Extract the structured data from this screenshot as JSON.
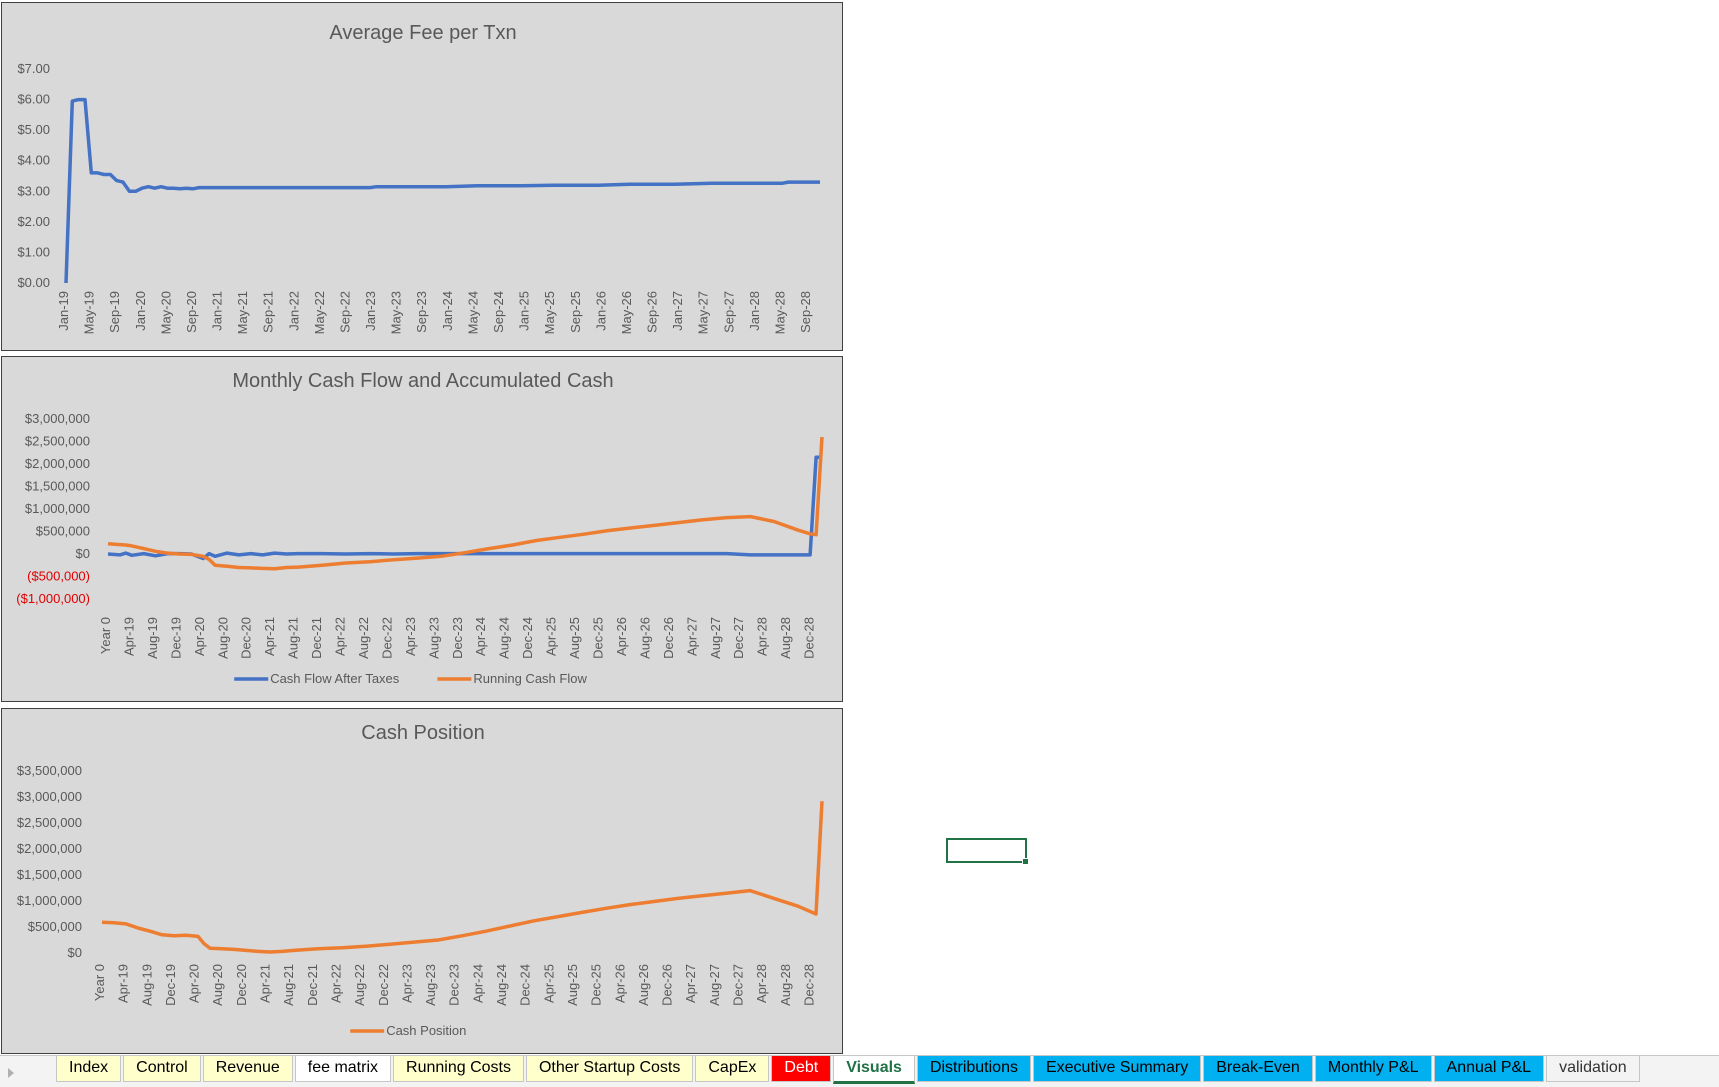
{
  "charts": [
    {
      "id": "chart1",
      "title": "Average Fee per Txn",
      "y_ticks": [
        "$0.00",
        "$1.00",
        "$2.00",
        "$3.00",
        "$4.00",
        "$5.00",
        "$6.00",
        "$7.00"
      ],
      "x_ticks": [
        "Jan-19",
        "May-19",
        "Sep-19",
        "Jan-20",
        "May-20",
        "Sep-20",
        "Jan-21",
        "May-21",
        "Sep-21",
        "Jan-22",
        "May-22",
        "Sep-22",
        "Jan-23",
        "May-23",
        "Sep-23",
        "Jan-24",
        "May-24",
        "Sep-24",
        "Jan-25",
        "May-25",
        "Sep-25",
        "Jan-26",
        "May-26",
        "Sep-26",
        "Jan-27",
        "May-27",
        "Sep-27",
        "Jan-28",
        "May-28",
        "Sep-28"
      ],
      "legend": []
    },
    {
      "id": "chart2",
      "title": "Monthly Cash Flow and Accumulated Cash",
      "y_ticks": [
        "($1,000,000)",
        "($500,000)",
        "$0",
        "$500,000",
        "$1,000,000",
        "$1,500,000",
        "$2,000,000",
        "$2,500,000",
        "$3,000,000"
      ],
      "x_ticks": [
        "Year 0",
        "Apr-19",
        "Aug-19",
        "Dec-19",
        "Apr-20",
        "Aug-20",
        "Dec-20",
        "Apr-21",
        "Aug-21",
        "Dec-21",
        "Apr-22",
        "Aug-22",
        "Dec-22",
        "Apr-23",
        "Aug-23",
        "Dec-23",
        "Apr-24",
        "Aug-24",
        "Dec-24",
        "Apr-25",
        "Aug-25",
        "Dec-25",
        "Apr-26",
        "Aug-26",
        "Dec-26",
        "Apr-27",
        "Aug-27",
        "Dec-27",
        "Apr-28",
        "Aug-28",
        "Dec-28"
      ],
      "legend": [
        "Cash Flow After Taxes",
        "Running Cash Flow"
      ]
    },
    {
      "id": "chart3",
      "title": "Cash Position",
      "y_ticks": [
        "$0",
        "$500,000",
        "$1,000,000",
        "$1,500,000",
        "$2,000,000",
        "$2,500,000",
        "$3,000,000",
        "$3,500,000"
      ],
      "x_ticks": [
        "Year 0",
        "Apr-19",
        "Aug-19",
        "Dec-19",
        "Apr-20",
        "Aug-20",
        "Dec-20",
        "Apr-21",
        "Aug-21",
        "Dec-21",
        "Apr-22",
        "Aug-22",
        "Dec-22",
        "Apr-23",
        "Aug-23",
        "Dec-23",
        "Apr-24",
        "Aug-24",
        "Dec-24",
        "Apr-25",
        "Aug-25",
        "Dec-25",
        "Apr-26",
        "Aug-26",
        "Dec-26",
        "Apr-27",
        "Aug-27",
        "Dec-27",
        "Apr-28",
        "Aug-28",
        "Dec-28"
      ],
      "legend": [
        "Cash Position"
      ]
    }
  ],
  "chart_data": [
    {
      "type": "line",
      "title": "Average Fee per Txn",
      "xlabel": "",
      "ylabel": "",
      "ylim": [
        0,
        7
      ],
      "x": [
        "Jan-19",
        "Feb-19",
        "Mar-19",
        "Apr-19",
        "May-19",
        "Jun-19",
        "Jul-19",
        "Aug-19",
        "Sep-19",
        "Oct-19",
        "Nov-19",
        "Dec-19",
        "Jan-20",
        "Feb-20",
        "Mar-20",
        "Apr-20",
        "May-20",
        "Jun-20",
        "Jul-20",
        "Aug-20",
        "Sep-20",
        "Oct-20",
        "Nov-20",
        "Dec-20",
        "Jan-21",
        "Jun-21",
        "Jan-22",
        "Jan-23",
        "Feb-23",
        "Jan-24",
        "Jun-24",
        "Jan-25",
        "Jun-25",
        "Jan-26",
        "Jun-26",
        "Jan-27",
        "Jul-27",
        "Jan-28",
        "Jun-28",
        "Jul-28",
        "Dec-28"
      ],
      "series": [
        {
          "values": [
            0.0,
            5.95,
            6.0,
            6.0,
            3.6,
            3.6,
            3.55,
            3.55,
            3.35,
            3.3,
            3.0,
            3.0,
            3.1,
            3.15,
            3.1,
            3.15,
            3.1,
            3.1,
            3.08,
            3.1,
            3.08,
            3.12,
            3.12,
            3.12,
            3.12,
            3.12,
            3.12,
            3.12,
            3.15,
            3.15,
            3.18,
            3.18,
            3.2,
            3.2,
            3.23,
            3.23,
            3.26,
            3.26,
            3.26,
            3.3,
            3.3
          ],
          "color": "#4472c4"
        }
      ],
      "grid": false,
      "legend": "none"
    },
    {
      "type": "line",
      "title": "Monthly Cash Flow and Accumulated Cash",
      "xlabel": "",
      "ylabel": "",
      "ylim": [
        -1000000,
        3000000
      ],
      "x": [
        "Year 0",
        "Feb-19",
        "Mar-19",
        "Apr-19",
        "Jun-19",
        "Aug-19",
        "Oct-19",
        "Dec-19",
        "Feb-20",
        "Apr-20",
        "May-20",
        "Jun-20",
        "Aug-20",
        "Oct-20",
        "Dec-20",
        "Feb-21",
        "Apr-21",
        "Jun-21",
        "Aug-21",
        "Dec-21",
        "Apr-22",
        "Aug-22",
        "Dec-22",
        "Apr-23",
        "Aug-23",
        "Dec-23",
        "Apr-24",
        "Aug-24",
        "Dec-24",
        "Apr-25",
        "Aug-25",
        "Dec-25",
        "Apr-26",
        "Aug-26",
        "Dec-26",
        "Apr-27",
        "Aug-27",
        "Dec-27",
        "Apr-28",
        "Aug-28",
        "Oct-28",
        "Nov-28",
        "Dec-28"
      ],
      "series": [
        {
          "name": "Cash Flow After Taxes",
          "color": "#4472c4",
          "values": [
            0,
            -20000,
            20000,
            -30000,
            10000,
            -40000,
            10000,
            10000,
            0,
            -100000,
            10000,
            -50000,
            20000,
            -20000,
            10000,
            -20000,
            20000,
            0,
            10000,
            10000,
            0,
            10000,
            0,
            10000,
            10000,
            10000,
            10000,
            10000,
            10000,
            10000,
            10000,
            10000,
            10000,
            10000,
            10000,
            10000,
            10000,
            -20000,
            -20000,
            -20000,
            -20000,
            2150000,
            2150000
          ]
        },
        {
          "name": "Running Cash Flow",
          "color": "#ed7d31",
          "values": [
            230000,
            210000,
            200000,
            180000,
            120000,
            60000,
            20000,
            0,
            -10000,
            -50000,
            -120000,
            -250000,
            -270000,
            -300000,
            -310000,
            -320000,
            -330000,
            -300000,
            -290000,
            -250000,
            -200000,
            -170000,
            -130000,
            -90000,
            -50000,
            30000,
            120000,
            200000,
            300000,
            370000,
            440000,
            520000,
            580000,
            640000,
            700000,
            760000,
            810000,
            830000,
            720000,
            530000,
            450000,
            430000,
            2600000
          ]
        }
      ],
      "grid": false,
      "legend": "bottom"
    },
    {
      "type": "line",
      "title": "Cash Position",
      "xlabel": "",
      "ylabel": "",
      "ylim": [
        0,
        3500000
      ],
      "x": [
        "Year 0",
        "Feb-19",
        "Apr-19",
        "Jun-19",
        "Aug-19",
        "Oct-19",
        "Dec-19",
        "Feb-20",
        "Apr-20",
        "May-20",
        "Jun-20",
        "Aug-20",
        "Oct-20",
        "Dec-20",
        "Feb-21",
        "Apr-21",
        "Jun-21",
        "Aug-21",
        "Dec-21",
        "Apr-22",
        "Aug-22",
        "Dec-22",
        "Apr-23",
        "Aug-23",
        "Dec-23",
        "Apr-24",
        "Aug-24",
        "Dec-24",
        "Apr-25",
        "Aug-25",
        "Dec-25",
        "Apr-26",
        "Aug-26",
        "Dec-26",
        "Apr-27",
        "Aug-27",
        "Dec-27",
        "Apr-28",
        "Aug-28",
        "Nov-28",
        "Dec-28"
      ],
      "series": [
        {
          "name": "Cash Position",
          "color": "#ed7d31",
          "values": [
            590000,
            580000,
            560000,
            480000,
            420000,
            350000,
            330000,
            340000,
            320000,
            180000,
            90000,
            80000,
            70000,
            50000,
            30000,
            20000,
            30000,
            50000,
            80000,
            100000,
            130000,
            170000,
            210000,
            250000,
            330000,
            420000,
            520000,
            620000,
            700000,
            780000,
            860000,
            930000,
            990000,
            1050000,
            1100000,
            1150000,
            1200000,
            1050000,
            900000,
            750000,
            2920000
          ]
        }
      ],
      "grid": false,
      "legend": "bottom"
    }
  ],
  "tabs": [
    {
      "label": "Index",
      "bg": "#ffffcc",
      "fg": "#000000"
    },
    {
      "label": "Control",
      "bg": "#ffffcc",
      "fg": "#000000"
    },
    {
      "label": "Revenue",
      "bg": "#ffffcc",
      "fg": "#000000"
    },
    {
      "label": "fee matrix",
      "bg": "#ffffff",
      "fg": "#000000"
    },
    {
      "label": "Running Costs",
      "bg": "#ffffcc",
      "fg": "#000000"
    },
    {
      "label": "Other Startup Costs",
      "bg": "#ffffcc",
      "fg": "#000000"
    },
    {
      "label": "CapEx",
      "bg": "#ffffcc",
      "fg": "#000000"
    },
    {
      "label": "Debt",
      "bg": "#ff0000",
      "fg": "#ffffff"
    },
    {
      "label": "Visuals",
      "bg": "#ffffff",
      "fg": "#217346",
      "active": true
    },
    {
      "label": "Distributions",
      "bg": "#00b0f0",
      "fg": "#000000"
    },
    {
      "label": "Executive Summary",
      "bg": "#00b0f0",
      "fg": "#000000"
    },
    {
      "label": "Break-Even",
      "bg": "#00b0f0",
      "fg": "#000000"
    },
    {
      "label": "Monthly P&L",
      "bg": "#00b0f0",
      "fg": "#000000"
    },
    {
      "label": "Annual P&L",
      "bg": "#00b0f0",
      "fg": "#000000"
    },
    {
      "label": "validation",
      "bg": "#f3f3f3",
      "fg": "#333333"
    }
  ]
}
